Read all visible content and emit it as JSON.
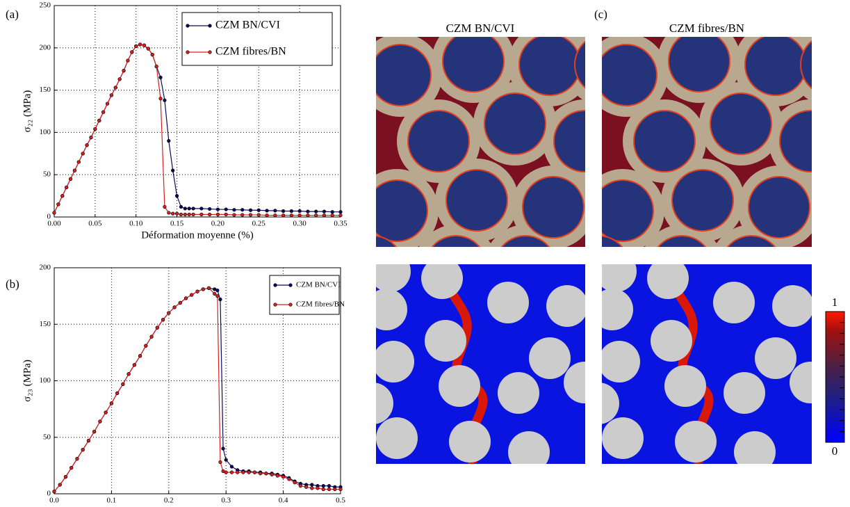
{
  "chart_data": [
    {
      "type": "line",
      "label": "(a)",
      "xlabel": "Déformation moyenne (%)",
      "ylabel": "σ₂₂ (MPa)",
      "x": [
        0,
        0.005,
        0.01,
        0.015,
        0.02,
        0.025,
        0.03,
        0.035,
        0.04,
        0.045,
        0.05,
        0.055,
        0.06,
        0.065,
        0.07,
        0.075,
        0.08,
        0.085,
        0.09,
        0.095,
        0.1,
        0.105,
        0.11,
        0.115,
        0.12,
        0.125,
        0.13,
        0.135,
        0.14,
        0.145,
        0.15,
        0.155,
        0.16,
        0.165,
        0.17,
        0.18,
        0.19,
        0.2,
        0.21,
        0.22,
        0.23,
        0.24,
        0.25,
        0.26,
        0.27,
        0.28,
        0.29,
        0.3,
        0.31,
        0.32,
        0.33,
        0.34,
        0.35
      ],
      "series": [
        {
          "name": "CZM BN/CVI",
          "color": "#0a0a5a",
          "values": [
            5,
            15,
            25,
            35,
            45,
            55,
            65,
            75,
            85,
            94,
            104,
            114,
            124,
            134,
            144,
            153,
            163,
            173,
            185,
            195,
            202,
            204,
            203,
            199,
            192,
            178,
            165,
            138,
            90,
            55,
            25,
            12,
            10,
            10,
            10,
            10,
            9.5,
            9,
            9,
            8.5,
            8.5,
            8,
            8,
            7.5,
            7.5,
            7,
            7,
            7,
            6.5,
            6.5,
            6.5,
            6,
            6
          ]
        },
        {
          "name": "CZM fibres/BN",
          "color": "#d62020",
          "values": [
            5,
            15,
            25,
            35,
            45,
            55,
            65,
            75,
            85,
            94,
            104,
            114,
            124,
            134,
            144,
            153,
            163,
            173,
            185,
            195,
            202,
            204,
            203,
            199,
            192,
            178,
            140,
            12,
            5,
            4,
            4,
            3,
            3,
            3,
            3,
            3,
            3,
            3,
            3,
            2.5,
            2.5,
            2.5,
            2.5,
            2,
            2,
            2,
            2,
            2,
            2,
            2,
            2,
            2,
            2
          ]
        }
      ],
      "xlim": [
        0,
        0.35
      ],
      "xticks": [
        {
          "value": 0,
          "label": "0.00"
        },
        {
          "value": 0.05,
          "label": "0.05"
        },
        {
          "value": 0.1,
          "label": "0.10"
        },
        {
          "value": 0.15,
          "label": "0.15"
        },
        {
          "value": 0.2,
          "label": "0.20"
        },
        {
          "value": 0.25,
          "label": "0.25"
        },
        {
          "value": 0.3,
          "label": "0.30"
        },
        {
          "value": 0.35,
          "label": "0.35"
        }
      ],
      "ylim": [
        0,
        250
      ],
      "yticks": [
        0,
        50,
        100,
        150,
        200,
        250
      ],
      "grid": true,
      "legend": "upper right"
    },
    {
      "type": "line",
      "label": "(b)",
      "xlabel": "Déformation moyenne (%)",
      "ylabel": "σ₂₃ (MPa)",
      "x": [
        0,
        0.01,
        0.02,
        0.03,
        0.04,
        0.05,
        0.06,
        0.07,
        0.08,
        0.09,
        0.1,
        0.11,
        0.12,
        0.13,
        0.14,
        0.15,
        0.16,
        0.17,
        0.18,
        0.19,
        0.2,
        0.21,
        0.22,
        0.23,
        0.24,
        0.25,
        0.26,
        0.27,
        0.28,
        0.285,
        0.29,
        0.295,
        0.3,
        0.31,
        0.32,
        0.33,
        0.34,
        0.35,
        0.36,
        0.37,
        0.38,
        0.39,
        0.4,
        0.41,
        0.42,
        0.43,
        0.44,
        0.45,
        0.46,
        0.47,
        0.48,
        0.49,
        0.5
      ],
      "series": [
        {
          "name": "CZM BN/CVI",
          "color": "#0a0a5a",
          "values": [
            2,
            8,
            15,
            23,
            31,
            39,
            47,
            55,
            64,
            72,
            80,
            89,
            97,
            106,
            114,
            122,
            131,
            139,
            147,
            154,
            160,
            165,
            169,
            173,
            176,
            179,
            181,
            182,
            181,
            180,
            172,
            40,
            30,
            24,
            21,
            20,
            20,
            19,
            19,
            18,
            18,
            17,
            16,
            14,
            11,
            9,
            8,
            8,
            7,
            7,
            7,
            6,
            6
          ]
        },
        {
          "name": "CZM fibres/BN",
          "color": "#d62020",
          "values": [
            2,
            8,
            15,
            23,
            31,
            39,
            47,
            55,
            64,
            72,
            80,
            89,
            97,
            106,
            114,
            122,
            131,
            139,
            147,
            154,
            160,
            165,
            169,
            173,
            176,
            179,
            181,
            182,
            177,
            175,
            28,
            20,
            19,
            19,
            19,
            19,
            19,
            19,
            18,
            18,
            17,
            16,
            15,
            13,
            10,
            7,
            6,
            5,
            5,
            4,
            4,
            4,
            4
          ]
        }
      ],
      "xlim": [
        0,
        0.5
      ],
      "xticks": [
        {
          "value": 0,
          "label": "0.0"
        },
        0.1,
        0.2,
        0.3,
        0.4,
        0.5
      ],
      "ylim": [
        0,
        200
      ],
      "yticks": [
        0,
        50,
        100,
        150,
        200
      ],
      "grid": true,
      "legend": "upper right"
    }
  ],
  "panel_c": {
    "label": "(c)",
    "titles": [
      "CZM BN/CVI",
      "CZM fibres/BN"
    ],
    "colorbar": {
      "lim": [
        0,
        1
      ],
      "ticks": [
        0,
        1
      ]
    }
  }
}
